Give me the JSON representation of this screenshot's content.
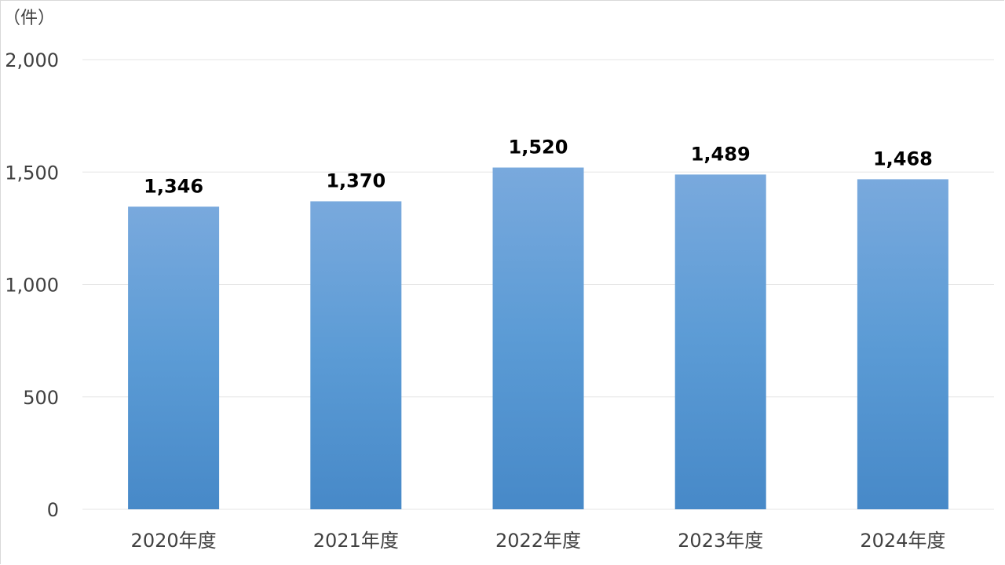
{
  "chart_data": {
    "type": "bar",
    "unit_label": "（件）",
    "categories": [
      "2020年度",
      "2021年度",
      "2022年度",
      "2023年度",
      "2024年度"
    ],
    "values": [
      1346,
      1370,
      1520,
      1489,
      1468
    ],
    "data_labels": [
      "1,346",
      "1,370",
      "1,520",
      "1,489",
      "1,468"
    ],
    "ylim": [
      0,
      2000
    ],
    "yticks": [
      0,
      500,
      1000,
      1500,
      2000
    ],
    "ytick_labels": [
      "0",
      "500",
      "1,000",
      "1,500",
      "2,000"
    ],
    "grid": true,
    "colors": {
      "bar_top": "#79a9dd",
      "bar_mid": "#5b9bd5",
      "bar_bottom": "#4789c8",
      "grid": "#e6e6e6",
      "axis_text": "#404040",
      "label_text": "#000000"
    }
  }
}
